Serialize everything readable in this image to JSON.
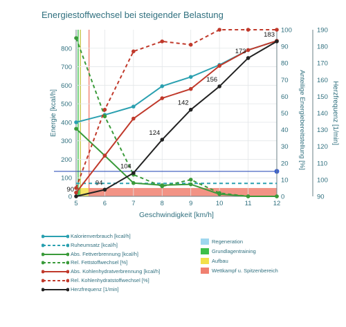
{
  "title": "Energiestoffwechsel bei steigender Belastung",
  "chart_data": {
    "type": "line",
    "title": "Energiestoffwechsel bei steigender Belastung",
    "xlabel": "Geschwindigkeit [km/h]",
    "ylabel_left": "Energie [kcal/h]",
    "ylabel_right1": "Anteilige Energiebereitstellung [%]",
    "ylabel_right2": "Herzfrequenz [1/min]",
    "x_ticks": [
      5,
      6,
      7,
      8,
      9,
      10,
      11,
      12
    ],
    "y_left_ticks": [
      0,
      100,
      200,
      300,
      400,
      500,
      600,
      700,
      800
    ],
    "y_right1_ticks": [
      0,
      10,
      20,
      30,
      40,
      50,
      60,
      70,
      80,
      90,
      100
    ],
    "y_right2_ticks": [
      90,
      100,
      110,
      120,
      130,
      140,
      150,
      160,
      170,
      180,
      190
    ],
    "xlim": [
      5,
      12
    ],
    "ylim_left": [
      0,
      900
    ],
    "ylim_right1": [
      0,
      100
    ],
    "ylim_right2": [
      90,
      190
    ],
    "series": [
      {
        "name": "Kalorienverbrauch [kcal/h]",
        "axis": "left",
        "color": "#2aa0b0",
        "dash": false,
        "x": [
          5,
          6,
          7,
          8,
          9,
          10,
          11,
          12
        ],
        "y": [
          400,
          440,
          485,
          595,
          645,
          710,
          790,
          840
        ]
      },
      {
        "name": "Ruheumsatz [kcal/h]",
        "axis": "left",
        "color": "#2aa0b0",
        "dash": true,
        "x": [
          5,
          12
        ],
        "y": [
          70,
          70
        ]
      },
      {
        "name": "Abs. Fettverbrennung [kcal/h]",
        "axis": "left",
        "color": "#3a9a3a",
        "dash": false,
        "x": [
          5,
          6,
          7,
          8,
          9,
          10,
          11,
          12
        ],
        "y": [
          365,
          220,
          72,
          60,
          65,
          12,
          0,
          0
        ]
      },
      {
        "name": "Rel. Fettstoffwechsel [%]",
        "axis": "right1",
        "color": "#3a9a3a",
        "dash": true,
        "x": [
          5,
          6,
          7,
          8,
          9,
          10,
          11,
          12
        ],
        "y": [
          95,
          48,
          13,
          6,
          10,
          2,
          0,
          0
        ]
      },
      {
        "name": "Abs. Kohlenhydratverbrennung [kcal/h]",
        "axis": "left",
        "color": "#c0392b",
        "dash": false,
        "x": [
          5,
          6,
          7,
          8,
          9,
          10,
          11,
          12
        ],
        "y": [
          20,
          220,
          420,
          530,
          580,
          705,
          790,
          840
        ]
      },
      {
        "name": "Rel. Kohlenhydratstoffwechsel [%]",
        "axis": "right1",
        "color": "#c0392b",
        "dash": true,
        "x": [
          5,
          6,
          7,
          8,
          9,
          10,
          11,
          12
        ],
        "y": [
          5,
          52,
          87,
          93,
          91,
          100,
          100,
          100
        ]
      },
      {
        "name": "Herzfrequenz [1/min]",
        "axis": "right2",
        "color": "#222222",
        "dash": false,
        "x": [
          5,
          6,
          7,
          8,
          9,
          10,
          11,
          12
        ],
        "y": [
          90,
          94,
          104,
          124,
          142,
          156,
          173,
          183
        ]
      }
    ],
    "data_labels": [
      {
        "series": "Herzfrequenz [1/min]",
        "x": 5,
        "text": "90"
      },
      {
        "series": "Herzfrequenz [1/min]",
        "x": 6,
        "text": "94"
      },
      {
        "series": "Herzfrequenz [1/min]",
        "x": 7,
        "text": "104"
      },
      {
        "series": "Herzfrequenz [1/min]",
        "x": 8,
        "text": "124"
      },
      {
        "series": "Herzfrequenz [1/min]",
        "x": 9,
        "text": "142"
      },
      {
        "series": "Herzfrequenz [1/min]",
        "x": 10,
        "text": "156"
      },
      {
        "series": "Herzfrequenz [1/min]",
        "x": 11,
        "text": "173"
      },
      {
        "series": "Herzfrequenz [1/min]",
        "x": 12,
        "text": "183"
      }
    ],
    "reference_line": {
      "axis": "right2",
      "value": 105,
      "color": "#1a3fb0"
    },
    "zones": [
      {
        "name": "Regeneration",
        "color": "#9fd7ef",
        "x_from": 5.0,
        "x_to": 5.05
      },
      {
        "name": "Grundlagentraining",
        "color": "#3cbf4a",
        "x_from": 5.05,
        "x_to": 5.15
      },
      {
        "name": "Aufbau",
        "color": "#f2e04a",
        "x_from": 5.15,
        "x_to": 5.45
      },
      {
        "name": "Wettkampf- u. Spitzenbereich",
        "color": "#f08070",
        "x_from": 5.45,
        "x_to": 12
      }
    ],
    "zone_band": {
      "axis": "right1",
      "y_from": 0,
      "y_to": 5
    },
    "grid": true,
    "legend_position": "bottom"
  },
  "legend": {
    "lines": [
      {
        "label": "Kalorienverbrauch [kcal/h]",
        "color": "#2aa0b0",
        "dash": false
      },
      {
        "label": "Ruheumsatz [kcal/h]",
        "color": "#2aa0b0",
        "dash": true
      },
      {
        "label": "Abs. Fettverbrennung [kcal/h]",
        "color": "#3a9a3a",
        "dash": false
      },
      {
        "label": "Rel. Fettstoffwechsel [%]",
        "color": "#3a9a3a",
        "dash": true
      },
      {
        "label": "Abs. Kohlenhydratverbrennung [kcal/h]",
        "color": "#c0392b",
        "dash": false
      },
      {
        "label": "Rel. Kohlenhydratstoffwechsel [%]",
        "color": "#c0392b",
        "dash": true
      },
      {
        "label": "Herzfrequenz [1/min]",
        "color": "#222222",
        "dash": false
      }
    ],
    "zones": [
      {
        "label": "Regeneration",
        "color": "#9fd7ef"
      },
      {
        "label": "Grundlagentraining",
        "color": "#3cbf4a"
      },
      {
        "label": "Aufbau",
        "color": "#f2e04a"
      },
      {
        "label": "Wettkampf u. Spitzenbereich",
        "color": "#f08070"
      }
    ]
  }
}
